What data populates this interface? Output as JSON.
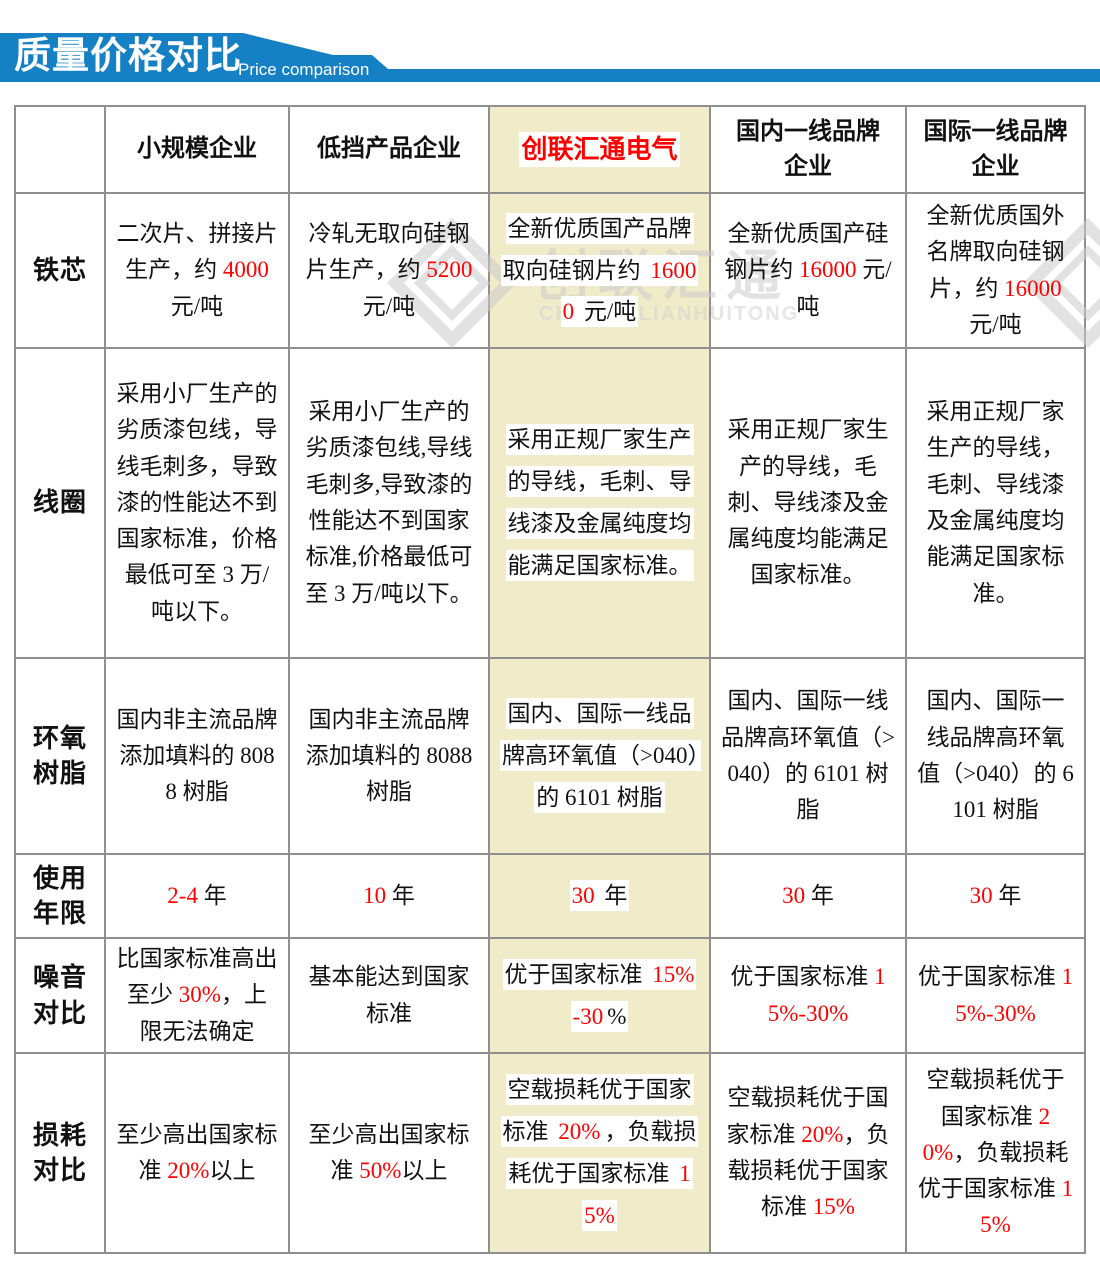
{
  "banner": {
    "title": "质量价格对比",
    "subtitle": "Price comparison"
  },
  "watermark": {
    "name": "创联汇通",
    "latin": "CHUANGLIANHUITONG"
  },
  "colors": {
    "accent_blue": "#1580c4",
    "highlight_red": "#fe0000",
    "brand_column_bg": "#f0ebc8",
    "border_gray": "#8f8f8f"
  },
  "table": {
    "columns": [
      {
        "label": ""
      },
      {
        "label": "小规模企业"
      },
      {
        "label": "低挡产品企业"
      },
      {
        "label": "创联汇通电气",
        "brand": true
      },
      {
        "label": "国内一线品牌企业"
      },
      {
        "label": "国际一线品牌企业"
      }
    ],
    "rows": [
      {
        "label": "铁芯",
        "cells": [
          [
            {
              "t": "二次片、拼接片生产，约 "
            },
            {
              "t": "4000",
              "c": "red"
            },
            {
              "t": " 元/吨"
            }
          ],
          [
            {
              "t": "冷轧无取向硅钢片生产，约 "
            },
            {
              "t": "5200",
              "c": "red"
            },
            {
              "t": " 元/吨"
            }
          ],
          [
            {
              "t": "全新优质国产品牌取向硅钢片约 "
            },
            {
              "t": "16000",
              "c": "red"
            },
            {
              "t": " 元/吨"
            }
          ],
          [
            {
              "t": "全新优质国产硅钢片约 "
            },
            {
              "t": "16000",
              "c": "red"
            },
            {
              "t": " 元/吨"
            }
          ],
          [
            {
              "t": "全新优质国外名牌取向硅钢片，约 "
            },
            {
              "t": "16000",
              "c": "red"
            },
            {
              "t": " 元/吨"
            }
          ]
        ]
      },
      {
        "label": "线圈",
        "cells": [
          [
            {
              "t": "采用小厂生产的劣质漆包线，导线毛刺多，导致漆的性能达不到国家标准，价格最低可至 3 万/吨以下。"
            }
          ],
          [
            {
              "t": "采用小厂生产的劣质漆包线,导线毛刺多,导致漆的性能达不到国家标准,价格最低可至 3 万/吨以下。"
            }
          ],
          [
            {
              "t": "采用正规厂家生产的导线，毛刺、导线漆及金属纯度均能满足国家标准。"
            }
          ],
          [
            {
              "t": "采用正规厂家生产的导线，毛刺、导线漆及金属纯度均能满足国家标准。"
            }
          ],
          [
            {
              "t": "采用正规厂家生产的导线，毛刺、导线漆及金属纯度均能满足国家标准。"
            }
          ]
        ]
      },
      {
        "label": "环氧树脂",
        "cells": [
          [
            {
              "t": "国内非主流品牌添加填料的 8088 树脂"
            }
          ],
          [
            {
              "t": "国内非主流品牌添加填料的 8088 树脂"
            }
          ],
          [
            {
              "t": "国内、国际一线品牌高环氧值（>040）的 6101 树脂"
            }
          ],
          [
            {
              "t": "国内、国际一线品牌高环氧值（>040）的 6101 树脂"
            }
          ],
          [
            {
              "t": "国内、国际一线品牌高环氧值（>040）的 6101 树脂"
            }
          ]
        ]
      },
      {
        "label": "使用年限",
        "cells": [
          [
            {
              "t": "2-4",
              "c": "red"
            },
            {
              "t": " 年"
            }
          ],
          [
            {
              "t": "10",
              "c": "red"
            },
            {
              "t": " 年"
            }
          ],
          [
            {
              "t": "30",
              "c": "red"
            },
            {
              "t": " 年"
            }
          ],
          [
            {
              "t": "30",
              "c": "red"
            },
            {
              "t": " 年"
            }
          ],
          [
            {
              "t": "30",
              "c": "red"
            },
            {
              "t": " 年"
            }
          ]
        ]
      },
      {
        "label": "噪音对比",
        "cells": [
          [
            {
              "t": "比国家标准高出至少 "
            },
            {
              "t": "30%",
              "c": "red"
            },
            {
              "t": "，上限无法确定"
            }
          ],
          [
            {
              "t": "基本能达到国家标准"
            }
          ],
          [
            {
              "t": "优于国家标准 "
            },
            {
              "t": "15%-30",
              "c": "red"
            },
            {
              "t": "%"
            }
          ],
          [
            {
              "t": "优于国家标准 "
            },
            {
              "t": "15%-30%",
              "c": "red"
            }
          ],
          [
            {
              "t": "优于国家标准 "
            },
            {
              "t": "15%-30%",
              "c": "red"
            }
          ]
        ]
      },
      {
        "label": "损耗对比",
        "cells": [
          [
            {
              "t": "至少高出国家标准 "
            },
            {
              "t": "20%",
              "c": "red"
            },
            {
              "t": "以上"
            }
          ],
          [
            {
              "t": "至少高出国家标准 "
            },
            {
              "t": "50%",
              "c": "red"
            },
            {
              "t": "以上"
            }
          ],
          [
            {
              "t": "空载损耗优于国家标准 "
            },
            {
              "t": "20%",
              "c": "red"
            },
            {
              "t": "，负载损耗优于国家标准 "
            },
            {
              "t": "15%",
              "c": "red"
            }
          ],
          [
            {
              "t": "空载损耗优于国家标准 "
            },
            {
              "t": "20%",
              "c": "red"
            },
            {
              "t": "，负载损耗优于国家标准 "
            },
            {
              "t": "15%",
              "c": "red"
            }
          ],
          [
            {
              "t": "空载损耗优于国家标准 "
            },
            {
              "t": "20%",
              "c": "red"
            },
            {
              "t": "，负载损耗优于国家标准 "
            },
            {
              "t": "15%",
              "c": "red"
            }
          ]
        ]
      }
    ]
  }
}
